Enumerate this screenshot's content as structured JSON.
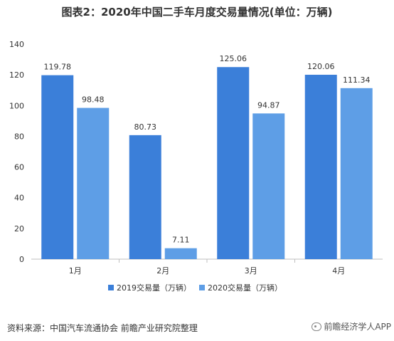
{
  "title": "图表2：2020年中国二手车月度交易量情况(单位：万辆)",
  "source": "资料来源：中国汽车流通协会 前瞻产业研究院整理",
  "watermark": "前瞻经济学人APP",
  "colors": {
    "series2019": "#3b7fd9",
    "series2020": "#5e9ee6",
    "axis": "#bfbfbf",
    "text": "#333333"
  },
  "chart_data": {
    "type": "bar",
    "categories": [
      "1月",
      "2月",
      "3月",
      "4月"
    ],
    "series": [
      {
        "name": "2019交易量（万辆）",
        "values": [
          119.78,
          80.73,
          125.06,
          120.06
        ]
      },
      {
        "name": "2020交易量（万辆）",
        "values": [
          98.48,
          7.11,
          94.87,
          111.34
        ]
      }
    ],
    "ylim": [
      0,
      140
    ],
    "yticks": [
      0,
      20,
      40,
      60,
      80,
      100,
      120,
      140
    ],
    "data_labels": true,
    "grid": false,
    "legend": "bottom-center"
  }
}
